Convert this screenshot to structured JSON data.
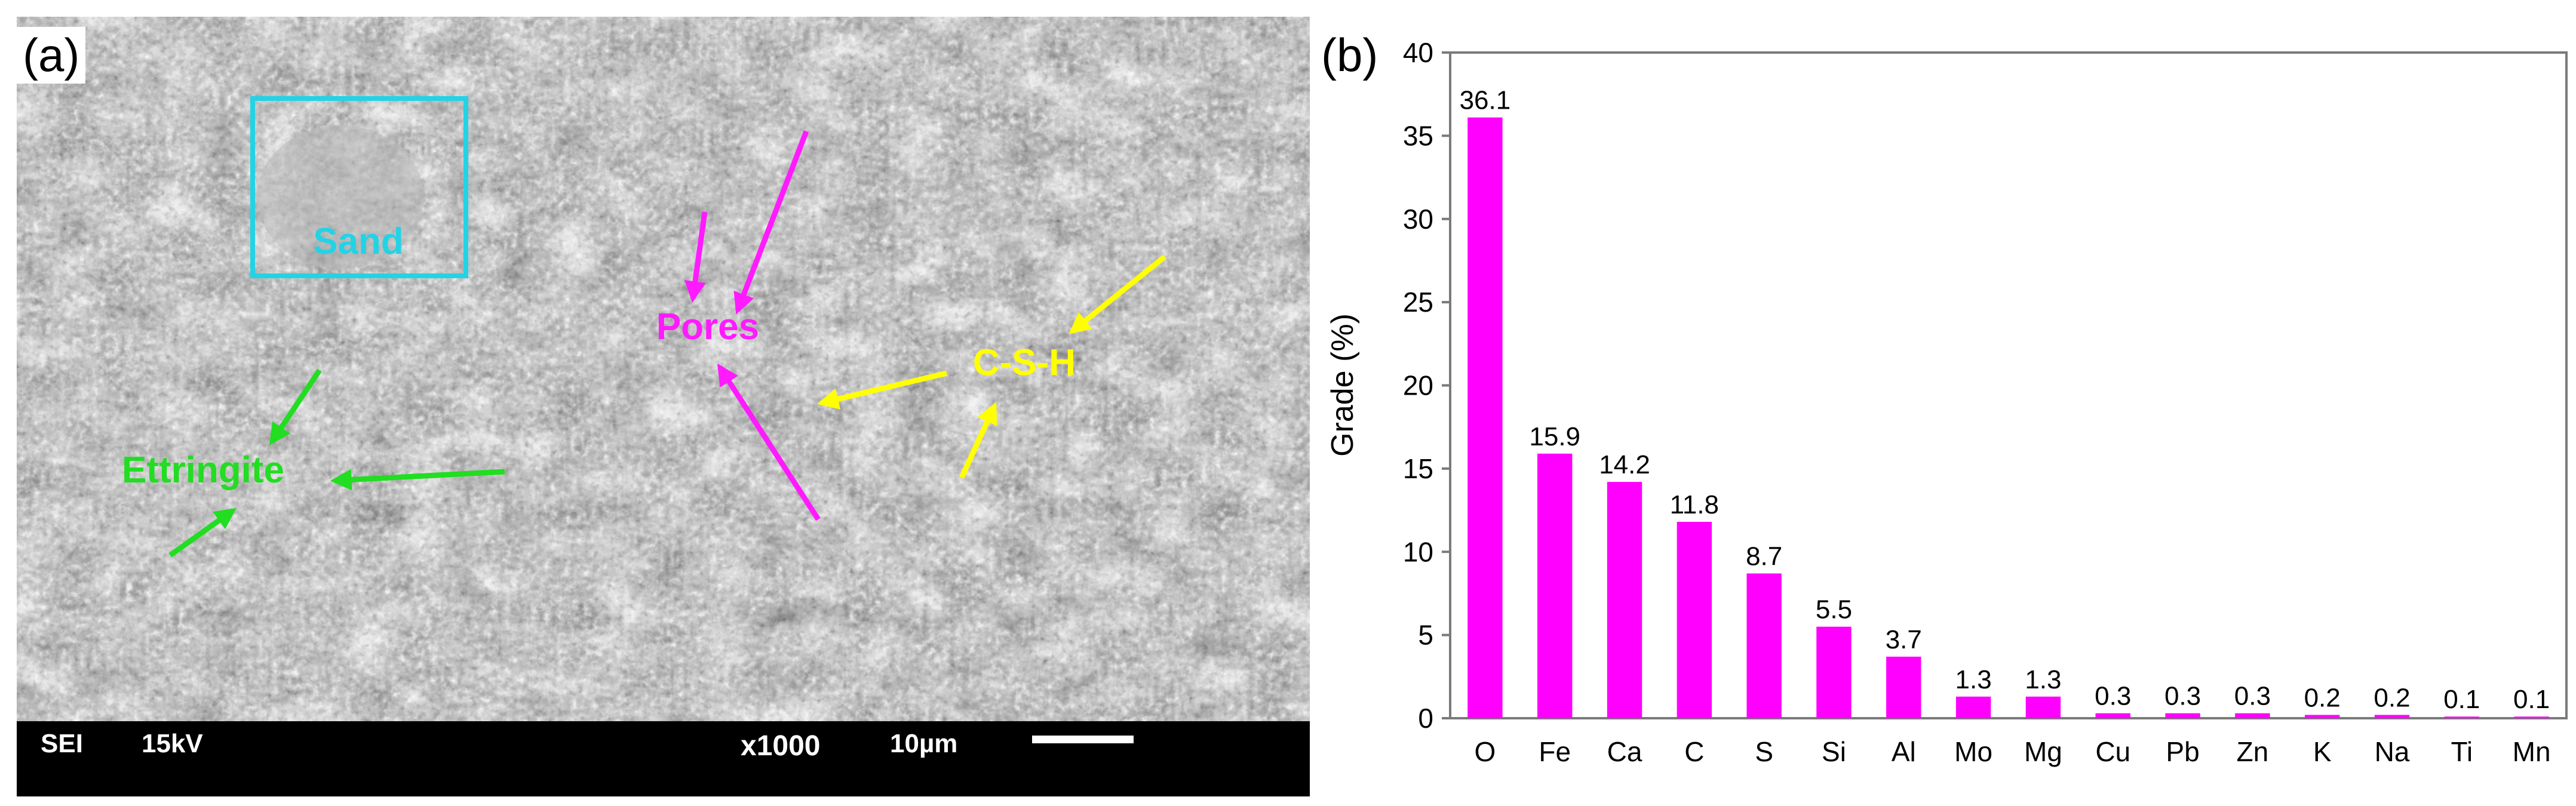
{
  "panel_a": {
    "label": "(a)",
    "annotations": {
      "sand": "Sand",
      "pores": "Pores",
      "csh": "C-S-H",
      "ettringite": "Ettringite"
    },
    "scalebar": {
      "mode": "SEI",
      "voltage": "15kV",
      "magnification": "x1000",
      "scale": "10µm"
    },
    "colors": {
      "sand": "#22d3e6",
      "pores": "#ff1aff",
      "csh": "#ffff00",
      "ettringite": "#22dd22"
    }
  },
  "panel_b": {
    "label": "(b)"
  },
  "chart_data": {
    "type": "bar",
    "title": "",
    "xlabel": "",
    "ylabel": "Grade (%)",
    "ylim": [
      0,
      40
    ],
    "yticks": [
      0,
      5,
      10,
      15,
      20,
      25,
      30,
      35,
      40
    ],
    "grid": false,
    "bar_color": "#ff00ff",
    "categories": [
      "O",
      "Fe",
      "Ca",
      "C",
      "S",
      "Si",
      "Al",
      "Mo",
      "Mg",
      "Cu",
      "Pb",
      "Zn",
      "K",
      "Na",
      "Ti",
      "Mn"
    ],
    "values": [
      36.1,
      15.9,
      14.2,
      11.8,
      8.7,
      5.5,
      3.7,
      1.3,
      1.3,
      0.3,
      0.3,
      0.3,
      0.2,
      0.2,
      0.1,
      0.1
    ],
    "data_labels": [
      "36.1",
      "15.9",
      "14.2",
      "11.8",
      "8.7",
      "5.5",
      "3.7",
      "1.3",
      "1.3",
      "0.3",
      "0.3",
      "0.3",
      "0.2",
      "0.2",
      "0.1",
      "0.1"
    ]
  }
}
